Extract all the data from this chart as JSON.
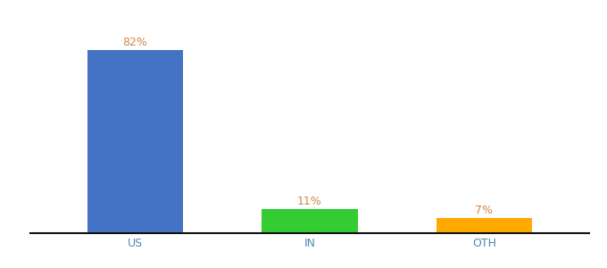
{
  "categories": [
    "US",
    "IN",
    "OTH"
  ],
  "values": [
    82,
    11,
    7
  ],
  "bar_colors": [
    "#4472c4",
    "#33cc33",
    "#ffaa00"
  ],
  "labels": [
    "82%",
    "11%",
    "7%"
  ],
  "ylim": [
    0,
    95
  ],
  "label_fontsize": 9,
  "tick_fontsize": 9,
  "bar_width": 0.55,
  "background_color": "#ffffff",
  "label_color": "#cc8844",
  "tick_color": "#5588aa"
}
